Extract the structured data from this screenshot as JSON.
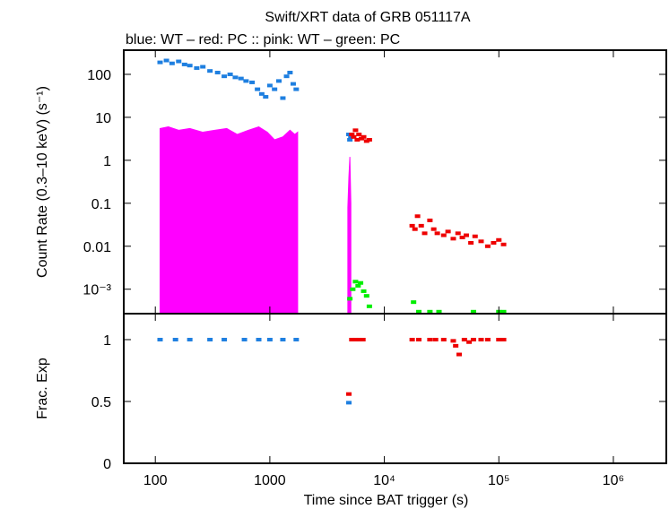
{
  "chart_data": [
    {
      "type": "scatter",
      "title": "Swift/XRT data of GRB 051117A",
      "subtitle": "blue: WT  – red: PC  :: pink: WT  – green: PC",
      "ylabel": "Count Rate (0.3–10 keV) (s⁻¹)",
      "xscale": "log",
      "yscale": "log",
      "xlim": [
        53,
        2900000
      ],
      "ylim": [
        0.00027,
        365
      ],
      "xticks": [
        100,
        1000,
        10000,
        100000,
        1000000
      ],
      "yticks": [
        100,
        10,
        1,
        0.1,
        0.01,
        {
          "value": 0.001,
          "label": "10⁻³"
        }
      ],
      "series": [
        {
          "color": "#ff00ff",
          "fill": true,
          "x": [
            110,
            130,
            160,
            200,
            260,
            330,
            420,
            520,
            650,
            800,
            950,
            1100,
            1300,
            1500,
            1650,
            1750,
            null,
            4800,
            4900,
            5000,
            5100
          ],
          "values": [
            5.5,
            6,
            5,
            5.5,
            4.5,
            5,
            5.5,
            4,
            5,
            6,
            4.5,
            3,
            3.5,
            5,
            4,
            4.5,
            null,
            0.08,
            0.4,
            1.2,
            0.1
          ]
        },
        {
          "color": "#1e7fe0",
          "x": [
            110,
            125,
            140,
            160,
            180,
            200,
            230,
            260,
            300,
            350,
            400,
            450,
            500,
            560,
            620,
            700,
            780,
            850,
            920,
            1000,
            1100,
            1200,
            1300,
            1400,
            1500,
            1600,
            1700,
            4900,
            5000,
            5100
          ],
          "values": [
            190,
            210,
            180,
            200,
            170,
            160,
            140,
            150,
            120,
            110,
            90,
            100,
            85,
            80,
            70,
            65,
            45,
            35,
            30,
            55,
            45,
            70,
            28,
            90,
            110,
            60,
            45,
            4,
            3,
            3.5
          ]
        },
        {
          "color": "#ee0000",
          "x": [
            5200,
            5400,
            5600,
            5800,
            6000,
            6300,
            6600,
            7000,
            7400,
            17500,
            18500,
            19500,
            21000,
            22500,
            25000,
            27000,
            29000,
            33000,
            36000,
            40000,
            44000,
            48000,
            52000,
            57000,
            62000,
            70000,
            80000,
            90000,
            100000,
            110000
          ],
          "values": [
            4,
            3.5,
            5,
            3,
            4,
            3.2,
            3.5,
            2.8,
            3,
            0.03,
            0.025,
            0.05,
            0.03,
            0.02,
            0.04,
            0.025,
            0.02,
            0.018,
            0.022,
            0.015,
            0.02,
            0.016,
            0.018,
            0.012,
            0.017,
            0.013,
            0.01,
            0.012,
            0.014,
            0.011
          ]
        },
        {
          "color": "#00ee00",
          "x": [
            5000,
            5300,
            5600,
            5900,
            6200,
            6600,
            7000,
            7400,
            18000,
            20000,
            25000,
            30000,
            60000,
            100000,
            110000
          ],
          "values": [
            0.0006,
            0.001,
            0.0015,
            0.0012,
            0.0014,
            0.0009,
            0.0007,
            0.0004,
            0.0005,
            0.0003,
            0.0003,
            0.0003,
            0.0003,
            0.0003,
            0.0003
          ]
        }
      ]
    },
    {
      "type": "scatter",
      "ylabel": "Frac. Exp",
      "xlabel": "Time since BAT trigger (s)",
      "xscale": "log",
      "xlim": [
        53,
        2900000
      ],
      "ylim": [
        0,
        1.21
      ],
      "xticks": [
        100,
        1000,
        {
          "value": 10000,
          "label": "10⁴"
        },
        {
          "value": 100000,
          "label": "10⁵"
        },
        {
          "value": 1000000,
          "label": "10⁶"
        }
      ],
      "yticks": [
        0,
        0.5,
        1
      ],
      "series": [
        {
          "color": "#1e7fe0",
          "x": [
            110,
            150,
            200,
            300,
            400,
            600,
            800,
            1000,
            1300,
            1700,
            4900
          ],
          "values": [
            1,
            1,
            1,
            1,
            1,
            1,
            1,
            1,
            1,
            1,
            0.49
          ]
        },
        {
          "color": "#ee0000",
          "x": [
            4900,
            5200,
            5600,
            6000,
            6500,
            17500,
            20000,
            25000,
            28000,
            33000,
            40000,
            42000,
            45000,
            50000,
            55000,
            60000,
            70000,
            80000,
            100000,
            110000
          ],
          "values": [
            0.56,
            1,
            1,
            1,
            1,
            1,
            1,
            1,
            1,
            1,
            0.99,
            0.95,
            0.88,
            1,
            0.98,
            1,
            1,
            1,
            1,
            1
          ]
        }
      ]
    }
  ]
}
